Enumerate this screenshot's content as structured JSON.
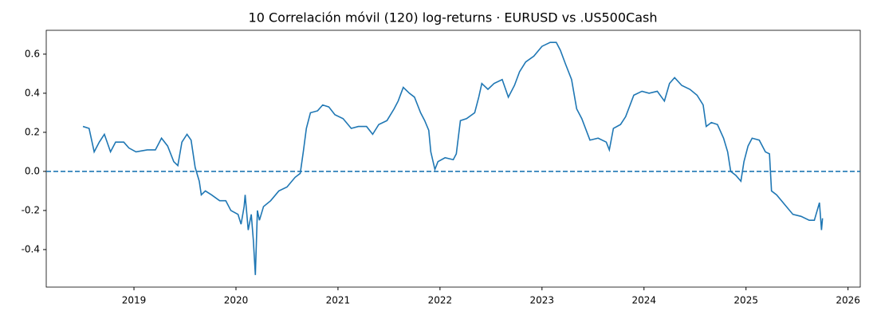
{
  "chart_data": {
    "type": "line",
    "title": "10 Correlación móvil (120) log-returns · EURUSD vs .US500Cash",
    "x": [
      2018.5,
      2018.56,
      2018.61,
      2018.66,
      2018.71,
      2018.77,
      2018.82,
      2018.9,
      2018.95,
      2019.02,
      2019.13,
      2019.21,
      2019.27,
      2019.33,
      2019.39,
      2019.43,
      2019.47,
      2019.52,
      2019.56,
      2019.6,
      2019.64,
      2019.66,
      2019.7,
      2019.76,
      2019.84,
      2019.9,
      2019.95,
      2020.02,
      2020.05,
      2020.08,
      2020.09,
      2020.12,
      2020.15,
      2020.17,
      2020.19,
      2020.21,
      2020.23,
      2020.27,
      2020.34,
      2020.42,
      2020.5,
      2020.58,
      2020.63,
      2020.66,
      2020.69,
      2020.73,
      2020.8,
      2020.85,
      2020.91,
      2020.97,
      2021.05,
      2021.13,
      2021.2,
      2021.28,
      2021.34,
      2021.4,
      2021.48,
      2021.55,
      2021.59,
      2021.64,
      2021.7,
      2021.75,
      2021.81,
      2021.85,
      2021.89,
      2021.91,
      2021.95,
      2021.98,
      2022.05,
      2022.13,
      2022.16,
      2022.2,
      2022.26,
      2022.34,
      2022.38,
      2022.41,
      2022.47,
      2022.53,
      2022.61,
      2022.67,
      2022.73,
      2022.78,
      2022.84,
      2022.92,
      2023.0,
      2023.08,
      2023.14,
      2023.18,
      2023.23,
      2023.29,
      2023.34,
      2023.39,
      2023.47,
      2023.55,
      2023.63,
      2023.66,
      2023.7,
      2023.77,
      2023.82,
      2023.9,
      2023.98,
      2024.05,
      2024.13,
      2024.2,
      2024.25,
      2024.3,
      2024.37,
      2024.45,
      2024.52,
      2024.58,
      2024.61,
      2024.66,
      2024.72,
      2024.78,
      2024.82,
      2024.85,
      2024.9,
      2024.95,
      2024.98,
      2025.02,
      2025.06,
      2025.13,
      2025.19,
      2025.23,
      2025.25,
      2025.3,
      2025.38,
      2025.46,
      2025.54,
      2025.62,
      2025.67,
      2025.72,
      2025.74,
      2025.75
    ],
    "series": [
      {
        "color": "#1f77b4",
        "values": [
          0.23,
          0.22,
          0.1,
          0.15,
          0.19,
          0.1,
          0.15,
          0.15,
          0.12,
          0.1,
          0.11,
          0.11,
          0.17,
          0.13,
          0.05,
          0.03,
          0.15,
          0.19,
          0.16,
          0.02,
          -0.05,
          -0.12,
          -0.1,
          -0.12,
          -0.15,
          -0.15,
          -0.2,
          -0.22,
          -0.27,
          -0.18,
          -0.12,
          -0.3,
          -0.22,
          -0.35,
          -0.53,
          -0.2,
          -0.25,
          -0.18,
          -0.15,
          -0.1,
          -0.08,
          -0.03,
          -0.01,
          0.1,
          0.22,
          0.3,
          0.31,
          0.34,
          0.33,
          0.29,
          0.27,
          0.22,
          0.23,
          0.23,
          0.19,
          0.24,
          0.26,
          0.32,
          0.36,
          0.43,
          0.4,
          0.38,
          0.3,
          0.26,
          0.21,
          0.1,
          0.01,
          0.05,
          0.07,
          0.06,
          0.09,
          0.26,
          0.27,
          0.3,
          0.38,
          0.45,
          0.42,
          0.45,
          0.47,
          0.38,
          0.44,
          0.51,
          0.56,
          0.59,
          0.64,
          0.66,
          0.66,
          0.62,
          0.55,
          0.47,
          0.32,
          0.27,
          0.16,
          0.17,
          0.15,
          0.11,
          0.22,
          0.24,
          0.28,
          0.39,
          0.41,
          0.4,
          0.41,
          0.36,
          0.45,
          0.48,
          0.44,
          0.42,
          0.39,
          0.34,
          0.23,
          0.25,
          0.24,
          0.17,
          0.1,
          0.0,
          -0.02,
          -0.05,
          0.05,
          0.13,
          0.17,
          0.16,
          0.1,
          0.09,
          -0.1,
          -0.12,
          -0.17,
          -0.22,
          -0.23,
          -0.25,
          -0.25,
          -0.16,
          -0.3,
          -0.24
        ]
      }
    ],
    "hline": 0,
    "xlim": [
      2018.14,
      2026.12
    ],
    "xticks": [
      2019,
      2020,
      2021,
      2022,
      2023,
      2024,
      2025,
      2026
    ],
    "ylim": [
      -0.592,
      0.722
    ],
    "yticks": [
      -0.4,
      -0.2,
      {
        "value": 0,
        "label": "0.0"
      },
      0.2,
      0.4,
      0.6
    ]
  }
}
